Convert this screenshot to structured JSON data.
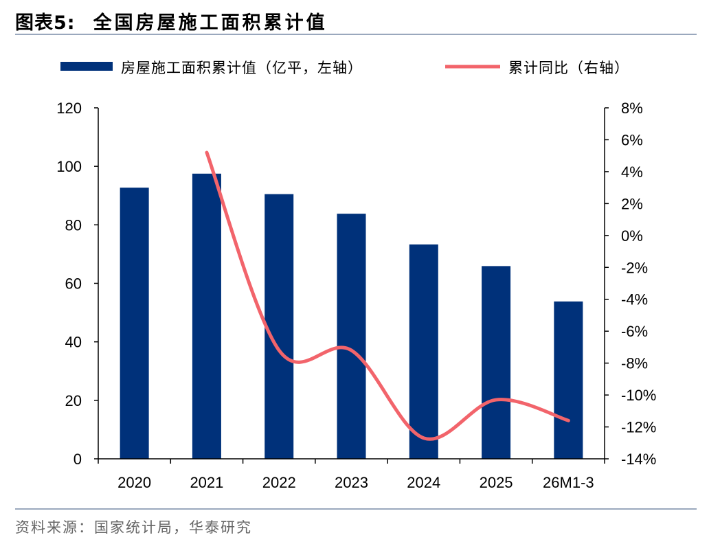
{
  "figure": {
    "number": "图表5:",
    "title": "全国房屋施工面积累计值",
    "source": "资料来源：国家统计局，华泰研究"
  },
  "colors": {
    "bar": "#00317A",
    "line": "#F2646B",
    "axis": "#000000",
    "rule": "#9aa8bd"
  },
  "chart_data": {
    "type": "bar+line",
    "categories": [
      "2020",
      "2021",
      "2022",
      "2023",
      "2024",
      "2025",
      "26M1-3"
    ],
    "series": [
      {
        "name": "房屋施工面积累计值（亿平，左轴）",
        "type": "bar",
        "axis": "left",
        "values": [
          92.7,
          97.5,
          90.5,
          83.8,
          73.3,
          65.9,
          53.8
        ]
      },
      {
        "name": "累计同比（右轴）",
        "type": "line",
        "axis": "right",
        "values": [
          null,
          5.2,
          -7.2,
          -7.2,
          -12.7,
          -10.3,
          -11.6
        ]
      }
    ],
    "left_axis": {
      "min": 0,
      "max": 120,
      "ticks": [
        0,
        20,
        40,
        60,
        80,
        100,
        120
      ],
      "labels": [
        "0",
        "20",
        "40",
        "60",
        "80",
        "100",
        "120"
      ]
    },
    "right_axis": {
      "min": -14,
      "max": 8,
      "ticks": [
        -14,
        -12,
        -10,
        -8,
        -6,
        -4,
        -2,
        0,
        2,
        4,
        6,
        8
      ],
      "labels": [
        "-14%",
        "-12%",
        "-10%",
        "-8%",
        "-6%",
        "-4%",
        "-2%",
        "0%",
        "2%",
        "4%",
        "6%",
        "8%"
      ]
    },
    "legend": {
      "position": "top",
      "entries": [
        "房屋施工面积累计值（亿平，左轴）",
        "累计同比（右轴）"
      ]
    }
  }
}
